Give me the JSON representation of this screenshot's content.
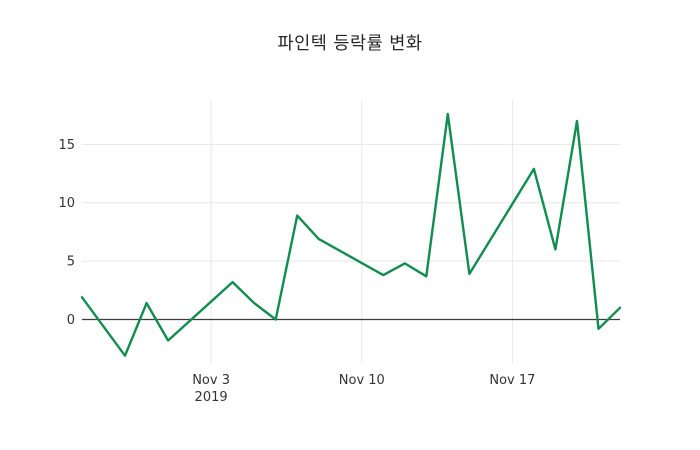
{
  "figure": {
    "title": "파인텍 등락률 변화"
  },
  "colors": {
    "background": "#ffffff",
    "line": "#118d50",
    "grid": "#e7e7e7",
    "zero_line": "#3c3c3c",
    "title_text": "#262626",
    "tick_text": "#333333"
  },
  "chart_data": {
    "type": "line",
    "title": "파인텍 등락률 변화",
    "xlabel": "",
    "ylabel": "",
    "grid": true,
    "zeroline": true,
    "legend": false,
    "line_color": "#118d50",
    "series_name": "파인텍 등락률",
    "x_dates": [
      "2019-10-28",
      "2019-10-30",
      "2019-10-31",
      "2019-11-01",
      "2019-11-04",
      "2019-11-05",
      "2019-11-06",
      "2019-11-07",
      "2019-11-08",
      "2019-11-11",
      "2019-11-12",
      "2019-11-13",
      "2019-11-14",
      "2019-11-15",
      "2019-11-18",
      "2019-11-19",
      "2019-11-20",
      "2019-11-21",
      "2019-11-22"
    ],
    "x_day_offsets": [
      0,
      2,
      3,
      4,
      7,
      8,
      9,
      10,
      11,
      14,
      15,
      16,
      17,
      18,
      21,
      22,
      23,
      24,
      25
    ],
    "values": [
      1.9,
      -3.1,
      1.4,
      -1.8,
      3.2,
      1.4,
      0.0,
      8.9,
      6.9,
      3.8,
      4.8,
      3.7,
      17.6,
      3.9,
      12.9,
      6.0,
      17.0,
      -0.8,
      1.0
    ],
    "ylim": [
      -3.9,
      18.8
    ],
    "xlim_day_offsets": [
      0,
      25
    ],
    "yticks": [
      0,
      5,
      10,
      15
    ],
    "xticks": [
      {
        "day": 6,
        "label": "Nov 3",
        "sublabel": "2019"
      },
      {
        "day": 13,
        "label": "Nov 10",
        "sublabel": ""
      },
      {
        "day": 20,
        "label": "Nov 17",
        "sublabel": ""
      }
    ]
  }
}
